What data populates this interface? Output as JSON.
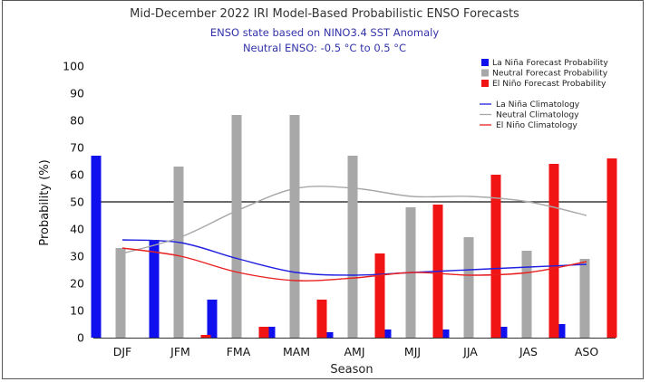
{
  "chart_data": {
    "type": "bar",
    "title": "Mid-December 2022 IRI Model-Based Probabilistic ENSO Forecasts",
    "subtitle_line1": "ENSO state based on NINO3.4 SST Anomaly",
    "subtitle_line2": "Neutral ENSO: -0.5 °C to 0.5 °C",
    "xlabel": "Season",
    "ylabel": "Probability (%)",
    "ylim": [
      0,
      100
    ],
    "yticks": [
      0,
      10,
      20,
      30,
      40,
      50,
      60,
      70,
      80,
      90,
      100
    ],
    "reference_line": 50,
    "categories": [
      "DJF",
      "JFM",
      "FMA",
      "MAM",
      "AMJ",
      "MJJ",
      "JJA",
      "JAS",
      "ASO"
    ],
    "series": [
      {
        "name": "La Niña Forecast Probability",
        "color": "#1010ee",
        "values": [
          67,
          36,
          14,
          4,
          2,
          3,
          3,
          4,
          5
        ]
      },
      {
        "name": "Neutral Forecast Probability",
        "color": "#a8a8a8",
        "values": [
          33,
          63,
          82,
          82,
          67,
          48,
          37,
          32,
          29
        ]
      },
      {
        "name": "El Niño Forecast Probability",
        "color": "#f01414",
        "values": [
          0,
          1,
          4,
          14,
          31,
          49,
          60,
          64,
          66
        ]
      }
    ],
    "climatology": [
      {
        "name": "La Niña Climatology",
        "color": "#2020e0",
        "values": [
          36,
          35,
          29,
          24,
          23,
          24,
          25,
          26,
          27
        ]
      },
      {
        "name": "Neutral Climatology",
        "color": "#a8a8a8",
        "values": [
          31,
          37,
          47,
          55,
          55,
          52,
          52,
          50,
          45
        ]
      },
      {
        "name": "El Niño Climatology",
        "color": "#e82020",
        "values": [
          33,
          30,
          24,
          21,
          22,
          24,
          23,
          24,
          28
        ]
      }
    ],
    "legend_position": "top-right"
  }
}
